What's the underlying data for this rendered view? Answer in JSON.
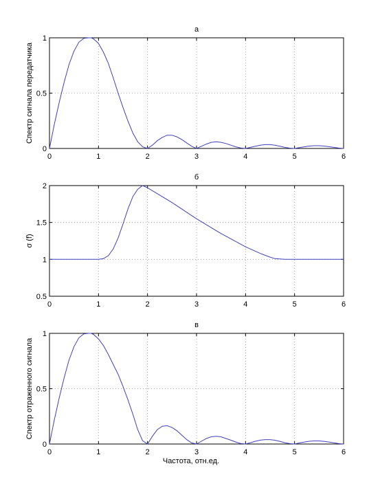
{
  "chart_data": [
    {
      "type": "line",
      "title": "а",
      "xlabel": "",
      "ylabel": "Спектр сигнала передатчика",
      "xlim": [
        0,
        6
      ],
      "ylim": [
        0,
        1
      ],
      "xticks": [
        "0",
        "1",
        "2",
        "3",
        "4",
        "5",
        "6"
      ],
      "yticks": [
        "0",
        "0.5",
        "1"
      ],
      "grid": "dotted",
      "line_color": "#4040c0",
      "x": [
        0,
        0.1,
        0.2,
        0.3,
        0.4,
        0.5,
        0.6,
        0.7,
        0.8,
        0.85,
        0.9,
        1.0,
        1.1,
        1.2,
        1.3,
        1.4,
        1.5,
        1.6,
        1.7,
        1.8,
        1.9,
        2.0,
        2.1,
        2.2,
        2.3,
        2.4,
        2.5,
        2.6,
        2.7,
        2.8,
        2.9,
        3.0,
        3.1,
        3.2,
        3.3,
        3.4,
        3.5,
        3.6,
        3.7,
        3.8,
        3.9,
        4.0,
        4.1,
        4.2,
        4.3,
        4.4,
        4.5,
        4.6,
        4.7,
        4.8,
        4.9,
        5.0,
        5.1,
        5.2,
        5.3,
        5.4,
        5.5,
        5.6,
        5.7,
        5.8,
        5.9,
        6.0
      ],
      "y": [
        0,
        0.22,
        0.42,
        0.6,
        0.76,
        0.88,
        0.96,
        0.995,
        1.0,
        1.0,
        0.99,
        0.95,
        0.87,
        0.77,
        0.64,
        0.5,
        0.37,
        0.25,
        0.14,
        0.06,
        0.015,
        0,
        0.03,
        0.07,
        0.1,
        0.12,
        0.12,
        0.105,
        0.08,
        0.05,
        0.02,
        0,
        0.02,
        0.04,
        0.055,
        0.06,
        0.055,
        0.045,
        0.03,
        0.015,
        0.005,
        0,
        0.01,
        0.02,
        0.03,
        0.035,
        0.035,
        0.03,
        0.02,
        0.01,
        0.003,
        0,
        0.008,
        0.015,
        0.022,
        0.025,
        0.025,
        0.022,
        0.016,
        0.01,
        0.004,
        0
      ]
    },
    {
      "type": "line",
      "title": "б",
      "xlabel": "",
      "ylabel": "σ (f)",
      "xlim": [
        0,
        6
      ],
      "ylim": [
        0.5,
        2
      ],
      "xticks": [
        "0",
        "1",
        "2",
        "3",
        "4",
        "5",
        "6"
      ],
      "yticks": [
        "0.5",
        "1",
        "1.5",
        "2"
      ],
      "grid": "dotted",
      "line_color": "#4040c0",
      "x": [
        0,
        0.5,
        1.0,
        1.1,
        1.2,
        1.3,
        1.4,
        1.5,
        1.6,
        1.7,
        1.8,
        1.9,
        2.0,
        2.5,
        3.0,
        3.5,
        4.0,
        4.3,
        4.5,
        4.6,
        4.7,
        4.8,
        4.9,
        5.0,
        5.5,
        6.0
      ],
      "y": [
        1,
        1,
        1,
        1.01,
        1.05,
        1.14,
        1.29,
        1.48,
        1.68,
        1.85,
        1.95,
        2.0,
        1.97,
        1.77,
        1.55,
        1.35,
        1.17,
        1.08,
        1.03,
        1.01,
        1.005,
        1.0,
        1.0,
        1,
        1,
        1
      ]
    },
    {
      "type": "line",
      "title": "в",
      "xlabel": "Частота, отн.ед.",
      "ylabel": "Спектр отраженного сигнала",
      "xlim": [
        0,
        6
      ],
      "ylim": [
        0,
        1
      ],
      "xticks": [
        "0",
        "1",
        "2",
        "3",
        "4",
        "5",
        "6"
      ],
      "yticks": [
        "0",
        "0.5",
        "1"
      ],
      "grid": "dotted",
      "line_color": "#4040c0",
      "x": [
        0,
        0.1,
        0.2,
        0.3,
        0.4,
        0.5,
        0.6,
        0.7,
        0.8,
        0.85,
        0.9,
        1.0,
        1.1,
        1.2,
        1.3,
        1.4,
        1.5,
        1.6,
        1.7,
        1.8,
        1.9,
        2.0,
        2.1,
        2.2,
        2.3,
        2.4,
        2.5,
        2.6,
        2.7,
        2.8,
        2.9,
        3.0,
        3.1,
        3.2,
        3.3,
        3.4,
        3.5,
        3.6,
        3.7,
        3.8,
        3.9,
        4.0,
        4.1,
        4.2,
        4.3,
        4.4,
        4.5,
        4.6,
        4.7,
        4.8,
        4.9,
        5.0,
        5.1,
        5.2,
        5.3,
        5.4,
        5.5,
        5.6,
        5.7,
        5.8,
        5.9,
        6.0
      ],
      "y": [
        0,
        0.22,
        0.42,
        0.6,
        0.76,
        0.88,
        0.96,
        0.995,
        1.0,
        1.0,
        0.99,
        0.95,
        0.89,
        0.81,
        0.72,
        0.63,
        0.52,
        0.4,
        0.27,
        0.13,
        0.03,
        0,
        0.07,
        0.13,
        0.16,
        0.165,
        0.15,
        0.12,
        0.08,
        0.04,
        0.01,
        0,
        0.025,
        0.05,
        0.065,
        0.07,
        0.065,
        0.05,
        0.035,
        0.018,
        0.005,
        0,
        0.012,
        0.025,
        0.035,
        0.04,
        0.04,
        0.034,
        0.024,
        0.012,
        0.004,
        0,
        0.01,
        0.018,
        0.025,
        0.028,
        0.028,
        0.024,
        0.018,
        0.011,
        0.004,
        0
      ]
    }
  ]
}
